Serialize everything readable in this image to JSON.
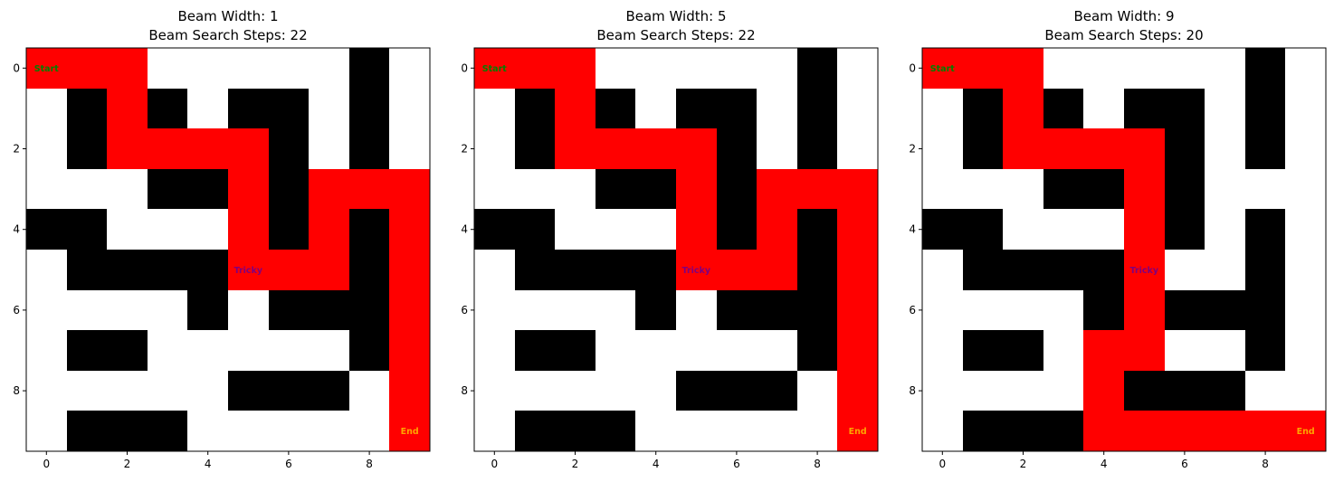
{
  "chart_data": [
    {
      "type": "heatmap",
      "title_line1": "Beam Width: 1",
      "title_line2": "Beam Search Steps: 22",
      "grid_rows": [
        "0000000010",
        "0101011010",
        "0100001010",
        "0001101000",
        "1100001010",
        "0111100010",
        "0000101110",
        "0110000010",
        "0000011100",
        "0111000000"
      ],
      "path": [
        [
          0,
          0
        ],
        [
          0,
          1
        ],
        [
          0,
          2
        ],
        [
          1,
          2
        ],
        [
          2,
          2
        ],
        [
          2,
          3
        ],
        [
          2,
          4
        ],
        [
          2,
          5
        ],
        [
          3,
          5
        ],
        [
          4,
          5
        ],
        [
          5,
          5
        ],
        [
          5,
          6
        ],
        [
          5,
          7
        ],
        [
          4,
          7
        ],
        [
          3,
          7
        ],
        [
          3,
          8
        ],
        [
          3,
          9
        ],
        [
          4,
          9
        ],
        [
          5,
          9
        ],
        [
          6,
          9
        ],
        [
          7,
          9
        ],
        [
          8,
          9
        ],
        [
          9,
          9
        ]
      ],
      "annotations": [
        {
          "row": 0,
          "col": 0,
          "text": "Start",
          "color": "#008000"
        },
        {
          "row": 5,
          "col": 5,
          "text": "Tricky",
          "color": "#800080"
        },
        {
          "row": 9,
          "col": 9,
          "text": "End",
          "color": "#FFA500"
        }
      ],
      "x_ticks": [
        0,
        2,
        4,
        6,
        8
      ],
      "y_ticks": [
        0,
        2,
        4,
        6,
        8
      ]
    },
    {
      "type": "heatmap",
      "title_line1": "Beam Width: 5",
      "title_line2": "Beam Search Steps: 22",
      "grid_rows": [
        "0000000010",
        "0101011010",
        "0100001010",
        "0001101000",
        "1100001010",
        "0111100010",
        "0000101110",
        "0110000010",
        "0000011100",
        "0111000000"
      ],
      "path": [
        [
          0,
          0
        ],
        [
          0,
          1
        ],
        [
          0,
          2
        ],
        [
          1,
          2
        ],
        [
          2,
          2
        ],
        [
          2,
          3
        ],
        [
          2,
          4
        ],
        [
          2,
          5
        ],
        [
          3,
          5
        ],
        [
          4,
          5
        ],
        [
          5,
          5
        ],
        [
          5,
          6
        ],
        [
          5,
          7
        ],
        [
          4,
          7
        ],
        [
          3,
          7
        ],
        [
          3,
          8
        ],
        [
          3,
          9
        ],
        [
          4,
          9
        ],
        [
          5,
          9
        ],
        [
          6,
          9
        ],
        [
          7,
          9
        ],
        [
          8,
          9
        ],
        [
          9,
          9
        ]
      ],
      "annotations": [
        {
          "row": 0,
          "col": 0,
          "text": "Start",
          "color": "#008000"
        },
        {
          "row": 5,
          "col": 5,
          "text": "Tricky",
          "color": "#800080"
        },
        {
          "row": 9,
          "col": 9,
          "text": "End",
          "color": "#FFA500"
        }
      ],
      "x_ticks": [
        0,
        2,
        4,
        6,
        8
      ],
      "y_ticks": [
        0,
        2,
        4,
        6,
        8
      ]
    },
    {
      "type": "heatmap",
      "title_line1": "Beam Width: 9",
      "title_line2": "Beam Search Steps: 20",
      "grid_rows": [
        "0000000010",
        "0101011010",
        "0100001010",
        "0001101000",
        "1100001010",
        "0111100010",
        "0000101110",
        "0110000010",
        "0000011100",
        "0111000000"
      ],
      "path": [
        [
          0,
          0
        ],
        [
          0,
          1
        ],
        [
          0,
          2
        ],
        [
          1,
          2
        ],
        [
          2,
          2
        ],
        [
          2,
          3
        ],
        [
          2,
          4
        ],
        [
          2,
          5
        ],
        [
          3,
          5
        ],
        [
          4,
          5
        ],
        [
          5,
          5
        ],
        [
          6,
          5
        ],
        [
          7,
          5
        ],
        [
          7,
          4
        ],
        [
          8,
          4
        ],
        [
          9,
          4
        ],
        [
          9,
          5
        ],
        [
          9,
          6
        ],
        [
          9,
          7
        ],
        [
          9,
          8
        ],
        [
          9,
          9
        ]
      ],
      "annotations": [
        {
          "row": 0,
          "col": 0,
          "text": "Start",
          "color": "#008000"
        },
        {
          "row": 5,
          "col": 5,
          "text": "Tricky",
          "color": "#800080"
        },
        {
          "row": 9,
          "col": 9,
          "text": "End",
          "color": "#FFA500"
        }
      ],
      "x_ticks": [
        0,
        2,
        4,
        6,
        8
      ],
      "y_ticks": [
        0,
        2,
        4,
        6,
        8
      ]
    }
  ],
  "colors": {
    "wall": "#000000",
    "open": "#FFFFFF",
    "path": "#FF0000"
  }
}
